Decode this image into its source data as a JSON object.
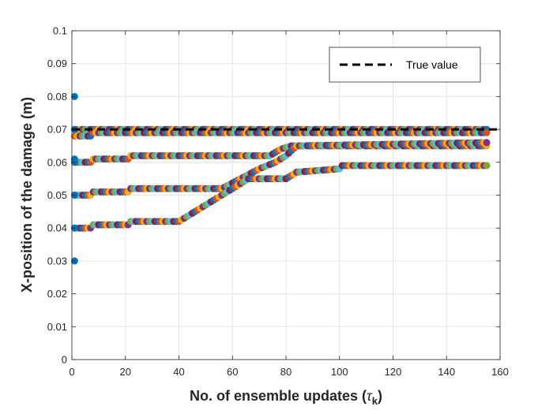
{
  "chart_data": {
    "type": "scatter",
    "title": "",
    "xlabel": "No. of ensemble updates (τk)",
    "xlabel_parts": {
      "main": "No. of ensemble updates (",
      "symbol": "τ",
      "subscript": "k",
      "close": ")"
    },
    "ylabel": "X-position of the damage (m)",
    "xlim": [
      0,
      160
    ],
    "ylim": [
      0,
      0.1
    ],
    "xticks": [
      "0",
      "20",
      "40",
      "60",
      "80",
      "100",
      "120",
      "140",
      "160"
    ],
    "yticks": [
      "0",
      "0.01",
      "0.02",
      "0.03",
      "0.04",
      "0.05",
      "0.06",
      "0.07",
      "0.08",
      "0.09",
      "0.1"
    ],
    "grid": true,
    "legend": {
      "position": "top-right",
      "entries": [
        {
          "label": "True value",
          "style": "dashed",
          "color": "#000000"
        }
      ]
    },
    "true_value": 0.07,
    "marker_colors": [
      "#0072BD",
      "#D95319",
      "#EDB120",
      "#7E2F8E",
      "#77AC30",
      "#4DBEEE",
      "#A2142F"
    ],
    "initial_points": {
      "x": 1,
      "y": [
        0.08,
        0.07,
        0.061,
        0.06,
        0.05,
        0.04,
        0.03
      ]
    },
    "trajectories": [
      {
        "name": "",
        "points": [
          [
            1,
            0.07
          ],
          [
            155,
            0.07
          ]
        ]
      },
      {
        "name": "",
        "points": [
          [
            1,
            0.068
          ],
          [
            7,
            0.068
          ],
          [
            8,
            0.069
          ],
          [
            155,
            0.069
          ]
        ]
      },
      {
        "name": "",
        "points": [
          [
            1,
            0.06
          ],
          [
            7,
            0.06
          ],
          [
            8,
            0.061
          ],
          [
            21,
            0.061
          ],
          [
            22,
            0.062
          ],
          [
            74,
            0.062
          ],
          [
            78,
            0.064
          ],
          [
            82,
            0.065
          ],
          [
            155,
            0.065
          ]
        ]
      },
      {
        "name": "",
        "points": [
          [
            1,
            0.05
          ],
          [
            7,
            0.05
          ],
          [
            8,
            0.051
          ],
          [
            21,
            0.051
          ],
          [
            22,
            0.052
          ],
          [
            56,
            0.052
          ],
          [
            63,
            0.055
          ],
          [
            70,
            0.058
          ],
          [
            76,
            0.06
          ],
          [
            80,
            0.062
          ],
          [
            84,
            0.065
          ],
          [
            155,
            0.066
          ]
        ]
      },
      {
        "name": "",
        "points": [
          [
            1,
            0.04
          ],
          [
            7,
            0.04
          ],
          [
            8,
            0.041
          ],
          [
            21,
            0.041
          ],
          [
            22,
            0.042
          ],
          [
            40,
            0.042
          ],
          [
            50,
            0.047
          ],
          [
            60,
            0.052
          ],
          [
            66,
            0.055
          ],
          [
            80,
            0.055
          ],
          [
            84,
            0.057
          ],
          [
            100,
            0.058
          ],
          [
            101,
            0.059
          ],
          [
            155,
            0.059
          ]
        ]
      }
    ]
  }
}
